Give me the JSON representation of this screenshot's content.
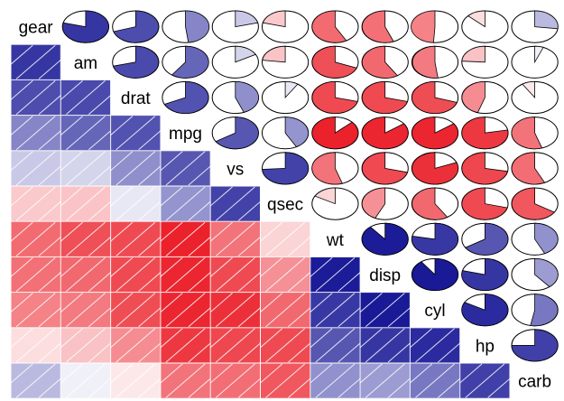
{
  "chart_data": {
    "type": "heatmap",
    "variables": [
      "gear",
      "am",
      "drat",
      "mpg",
      "vs",
      "qsec",
      "wt",
      "disp",
      "cyl",
      "hp",
      "carb"
    ],
    "order_note_free": true,
    "lower_panel": "shade",
    "upper_panel": "pie",
    "color_scale": {
      "negative": "#e8000b",
      "zero": "#ffffff",
      "positive": "#00008b"
    },
    "correlations": [
      [
        1.0,
        0.79,
        0.7,
        0.48,
        0.21,
        -0.21,
        -0.58,
        -0.56,
        -0.49,
        -0.13,
        0.27
      ],
      [
        0.79,
        1.0,
        0.71,
        0.6,
        0.17,
        -0.23,
        -0.69,
        -0.59,
        -0.52,
        -0.24,
        0.06
      ],
      [
        0.7,
        0.71,
        1.0,
        0.68,
        0.44,
        0.09,
        -0.71,
        -0.71,
        -0.7,
        -0.45,
        -0.09
      ],
      [
        0.48,
        0.6,
        0.68,
        1.0,
        0.66,
        0.42,
        -0.87,
        -0.85,
        -0.85,
        -0.78,
        -0.55
      ],
      [
        0.21,
        0.17,
        0.44,
        0.66,
        1.0,
        0.74,
        -0.55,
        -0.71,
        -0.81,
        -0.72,
        -0.57
      ],
      [
        -0.21,
        -0.23,
        0.09,
        0.42,
        0.74,
        1.0,
        -0.17,
        -0.43,
        -0.59,
        -0.71,
        -0.66
      ],
      [
        -0.58,
        -0.69,
        -0.71,
        -0.87,
        -0.55,
        -0.17,
        1.0,
        0.89,
        0.78,
        0.66,
        0.43
      ],
      [
        -0.56,
        -0.59,
        -0.71,
        -0.85,
        -0.71,
        -0.43,
        0.89,
        1.0,
        0.9,
        0.79,
        0.39
      ],
      [
        -0.49,
        -0.52,
        -0.7,
        -0.85,
        -0.81,
        -0.59,
        0.78,
        0.9,
        1.0,
        0.83,
        0.53
      ],
      [
        -0.13,
        -0.24,
        -0.45,
        -0.78,
        -0.72,
        -0.71,
        0.66,
        0.79,
        0.83,
        1.0,
        0.75
      ],
      [
        0.27,
        0.06,
        -0.09,
        -0.55,
        -0.57,
        -0.66,
        0.43,
        0.39,
        0.53,
        0.75,
        1.0
      ]
    ]
  }
}
